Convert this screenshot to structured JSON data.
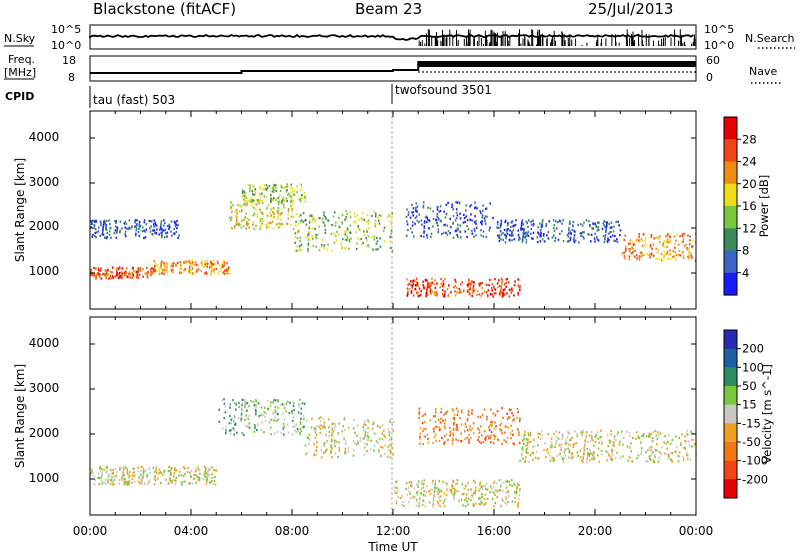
{
  "header": {
    "station": "Blackstone (fitACF)",
    "beam": "Beam 23",
    "date": "25/Jul/2013"
  },
  "noise_panel": {
    "left_label": "N.Sky",
    "left_top": "10^5",
    "left_bottom": "10^0",
    "right_label": "N.Search",
    "right_top": "10^5",
    "right_bottom": "10^0"
  },
  "freq_panel": {
    "label_line1": "Freq.",
    "label_line2": "[MHz]",
    "left_top": "18",
    "left_bottom": "8",
    "right_label": "Nave",
    "right_top": "60",
    "right_bottom": "0"
  },
  "cpid": {
    "label": "CPID",
    "segments": [
      {
        "start_hour": 0,
        "text": "tau (fast) 503"
      },
      {
        "start_hour": 12,
        "text": "twofsound 3501"
      }
    ]
  },
  "x_axis": {
    "label": "Time UT",
    "ticks": [
      "00:00",
      "04:00",
      "08:00",
      "12:00",
      "16:00",
      "20:00",
      "00:00"
    ],
    "range_hours": [
      0,
      24
    ]
  },
  "chart_data": [
    {
      "type": "heatmap",
      "name": "Power",
      "ylabel": "Slant Range [km]",
      "xlim_hours": [
        0,
        24
      ],
      "ylim": [
        200,
        4600
      ],
      "yticks": [
        "1000",
        "2000",
        "3000",
        "4000"
      ],
      "colorbar": {
        "label": "Power [dB]",
        "ticks": [
          "4",
          "8",
          "12",
          "16",
          "20",
          "24",
          "28"
        ],
        "colors": [
          "#1a1aff",
          "#3b64c8",
          "#3c8a5a",
          "#78c83c",
          "#f0dc14",
          "#f08c14",
          "#f04614",
          "#e60000"
        ]
      },
      "bands": [
        {
          "t0": 0,
          "t1": 2.5,
          "r0": 900,
          "r1": 1150,
          "level": 6
        },
        {
          "t0": 2.5,
          "t1": 5.5,
          "r0": 1000,
          "r1": 1300,
          "level": 5
        },
        {
          "t0": 5.5,
          "t1": 8,
          "r0": 2000,
          "r1": 2600,
          "level": 4
        },
        {
          "t0": 6,
          "t1": 8.5,
          "r0": 2600,
          "r1": 3000,
          "level": 3
        },
        {
          "t0": 0,
          "t1": 3.5,
          "r0": 1800,
          "r1": 2200,
          "level": 1
        },
        {
          "t0": 8,
          "t1": 12,
          "r0": 1500,
          "r1": 2400,
          "level": 3
        },
        {
          "t0": 12.5,
          "t1": 17,
          "r0": 500,
          "r1": 900,
          "level": 6
        },
        {
          "t0": 12.5,
          "t1": 16,
          "r0": 1800,
          "r1": 2600,
          "level": 1
        },
        {
          "t0": 16,
          "t1": 21,
          "r0": 1700,
          "r1": 2200,
          "level": 1
        },
        {
          "t0": 21,
          "t1": 24,
          "r0": 1300,
          "r1": 1900,
          "level": 5
        }
      ]
    },
    {
      "type": "heatmap",
      "name": "Velocity",
      "ylabel": "Slant Range [km]",
      "xlim_hours": [
        0,
        24
      ],
      "ylim": [
        200,
        4600
      ],
      "yticks": [
        "1000",
        "2000",
        "3000",
        "4000"
      ],
      "colorbar": {
        "label": "Velocity [m s^-1]",
        "ticks": [
          "200",
          "100",
          "50",
          "15",
          "-15",
          "-50",
          "-100",
          "-200"
        ],
        "colors": [
          "#2a2ab4",
          "#1e5fa0",
          "#2e8c64",
          "#78c83c",
          "#c8c8c0",
          "#f0a01e",
          "#f07814",
          "#f04614",
          "#e60000"
        ]
      },
      "bands": [
        {
          "t0": 0,
          "t1": 5,
          "r0": 900,
          "r1": 1300,
          "level": 4
        },
        {
          "t0": 5,
          "t1": 8.5,
          "r0": 2000,
          "r1": 2800,
          "level": 3
        },
        {
          "t0": 8.5,
          "t1": 12,
          "r0": 1500,
          "r1": 2400,
          "level": 4
        },
        {
          "t0": 12,
          "t1": 17,
          "r0": 400,
          "r1": 1000,
          "level": 4
        },
        {
          "t0": 13,
          "t1": 17,
          "r0": 1800,
          "r1": 2600,
          "level": 6
        },
        {
          "t0": 17,
          "t1": 24,
          "r0": 1400,
          "r1": 2100,
          "level": 4
        }
      ]
    }
  ]
}
